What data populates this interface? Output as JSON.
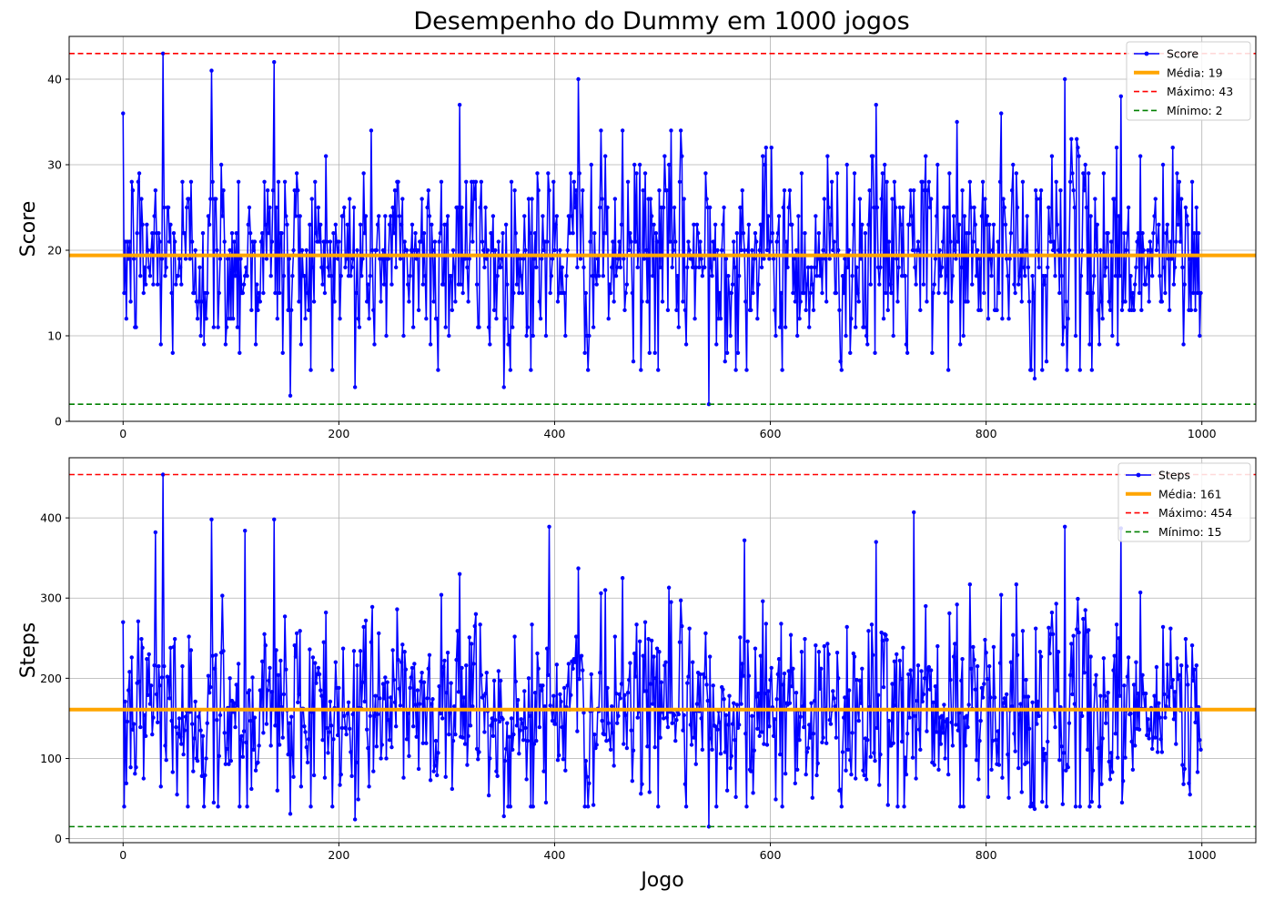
{
  "figure_title": "Desempenho do Dummy em 1000 jogos",
  "colors": {
    "series": "#0000ff",
    "mean": "#ffa500",
    "max": "#ff0000",
    "min": "#008000",
    "grid": "#b0b0b0"
  },
  "chart_data": [
    {
      "type": "line",
      "title": "Desempenho do Dummy em 1000 jogos",
      "xlabel": "",
      "ylabel": "Score",
      "xlim": [
        -50,
        1050
      ],
      "ylim": [
        0,
        45
      ],
      "xticks": [
        0,
        200,
        400,
        600,
        800,
        1000
      ],
      "yticks": [
        0,
        10,
        20,
        30,
        40
      ],
      "grid": true,
      "legend_position": "top-right",
      "series": [
        {
          "name": "Score",
          "style": "line-with-markers",
          "color": "#0000ff",
          "x_start": 0,
          "x_step": 1,
          "n_points": 1000,
          "values": []
        }
      ],
      "reference_lines": [
        {
          "name": "Média: 19",
          "value": 19.4,
          "color": "#ffa500",
          "style": "solid"
        },
        {
          "name": "Máximo: 43",
          "value": 43,
          "color": "#ff0000",
          "style": "dashed"
        },
        {
          "name": "Mínimo: 2",
          "value": 2,
          "color": "#008000",
          "style": "dashed"
        }
      ],
      "extremes": [
        {
          "x": 37,
          "y": 43
        },
        {
          "x": 140,
          "y": 42
        },
        {
          "x": 82,
          "y": 41
        },
        {
          "x": 422,
          "y": 40
        },
        {
          "x": 873,
          "y": 40
        },
        {
          "x": 925,
          "y": 38
        },
        {
          "x": 312,
          "y": 37
        },
        {
          "x": 698,
          "y": 37
        },
        {
          "x": 155,
          "y": 3
        },
        {
          "x": 215,
          "y": 4
        },
        {
          "x": 353,
          "y": 4
        },
        {
          "x": 543,
          "y": 2
        },
        {
          "x": 845,
          "y": 5
        }
      ]
    },
    {
      "type": "line",
      "title": "",
      "xlabel": "Jogo",
      "ylabel": "Steps",
      "xlim": [
        -50,
        1050
      ],
      "ylim": [
        -5,
        475
      ],
      "xticks": [
        0,
        200,
        400,
        600,
        800,
        1000
      ],
      "yticks": [
        0,
        100,
        200,
        300,
        400
      ],
      "grid": true,
      "legend_position": "top-right",
      "series": [
        {
          "name": "Steps",
          "style": "line-with-markers",
          "color": "#0000ff",
          "x_start": 0,
          "x_step": 1,
          "n_points": 1000,
          "values": []
        }
      ],
      "reference_lines": [
        {
          "name": "Média: 161",
          "value": 161,
          "color": "#ffa500",
          "style": "solid"
        },
        {
          "name": "Máximo: 454",
          "value": 454,
          "color": "#ff0000",
          "style": "dashed"
        },
        {
          "name": "Mínimo: 15",
          "value": 15,
          "color": "#008000",
          "style": "dashed"
        }
      ],
      "extremes": [
        {
          "x": 37,
          "y": 454
        },
        {
          "x": 82,
          "y": 398
        },
        {
          "x": 140,
          "y": 398
        },
        {
          "x": 395,
          "y": 389
        },
        {
          "x": 733,
          "y": 407
        },
        {
          "x": 873,
          "y": 389
        },
        {
          "x": 925,
          "y": 387
        },
        {
          "x": 30,
          "y": 382
        },
        {
          "x": 113,
          "y": 384
        },
        {
          "x": 576,
          "y": 372
        },
        {
          "x": 155,
          "y": 31
        },
        {
          "x": 215,
          "y": 24
        },
        {
          "x": 353,
          "y": 28
        },
        {
          "x": 543,
          "y": 15
        },
        {
          "x": 845,
          "y": 37
        },
        {
          "x": 60,
          "y": 40
        }
      ]
    }
  ]
}
